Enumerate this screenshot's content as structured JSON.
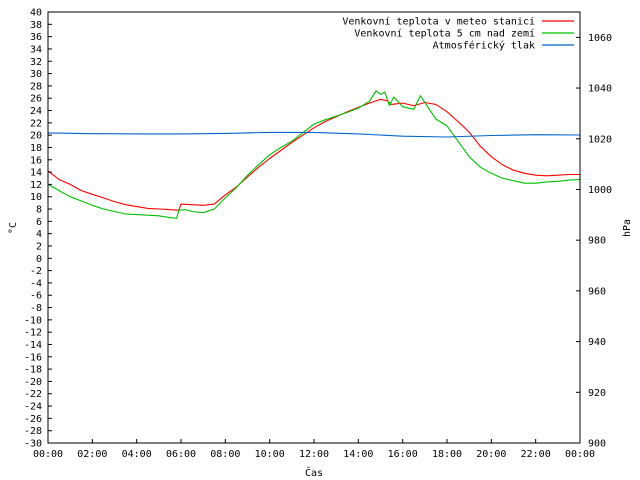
{
  "chart_data": {
    "type": "line",
    "title": "",
    "xlabel": "Čas",
    "ylabel": "°C",
    "y2label": "hPa",
    "x_ticks": [
      "00:00",
      "02:00",
      "04:00",
      "06:00",
      "08:00",
      "10:00",
      "12:00",
      "14:00",
      "16:00",
      "18:00",
      "20:00",
      "22:00",
      "00:00"
    ],
    "xlim": [
      0,
      24
    ],
    "ylim": [
      -30,
      40
    ],
    "y_ticks": [
      -30,
      -28,
      -26,
      -24,
      -22,
      -20,
      -18,
      -16,
      -14,
      -12,
      -10,
      -8,
      -6,
      -4,
      -2,
      0,
      2,
      4,
      6,
      8,
      10,
      12,
      14,
      16,
      18,
      20,
      22,
      24,
      26,
      28,
      30,
      32,
      34,
      36,
      38,
      40
    ],
    "y2lim": [
      900,
      1070
    ],
    "y2_ticks": [
      900,
      920,
      940,
      960,
      980,
      1000,
      1020,
      1040,
      1060
    ],
    "legend_position": "top-right",
    "grid": false,
    "series": [
      {
        "name": "Venkovní teplota v meteo stanici",
        "axis": "left",
        "color": "#ff0000",
        "points": [
          [
            0,
            14.2
          ],
          [
            0.5,
            12.8
          ],
          [
            1,
            12.0
          ],
          [
            1.5,
            11.0
          ],
          [
            2,
            10.4
          ],
          [
            2.5,
            9.8
          ],
          [
            3,
            9.2
          ],
          [
            3.5,
            8.7
          ],
          [
            4,
            8.4
          ],
          [
            4.5,
            8.1
          ],
          [
            5,
            8.0
          ],
          [
            5.5,
            7.9
          ],
          [
            5.9,
            7.8
          ],
          [
            6.0,
            8.8
          ],
          [
            6.5,
            8.7
          ],
          [
            7,
            8.6
          ],
          [
            7.5,
            8.8
          ],
          [
            8,
            10.3
          ],
          [
            8.5,
            11.6
          ],
          [
            9,
            13.2
          ],
          [
            9.5,
            14.8
          ],
          [
            10,
            16.2
          ],
          [
            10.5,
            17.5
          ],
          [
            11,
            18.8
          ],
          [
            11.5,
            20.0
          ],
          [
            12,
            21.2
          ],
          [
            12.5,
            22.2
          ],
          [
            13,
            23.0
          ],
          [
            13.5,
            23.8
          ],
          [
            14,
            24.5
          ],
          [
            14.5,
            25.2
          ],
          [
            15,
            25.8
          ],
          [
            15.3,
            25.6
          ],
          [
            15.5,
            25.0
          ],
          [
            16,
            25.2
          ],
          [
            16.5,
            24.8
          ],
          [
            17,
            25.3
          ],
          [
            17.5,
            25.0
          ],
          [
            18,
            23.8
          ],
          [
            18.5,
            22.2
          ],
          [
            19,
            20.5
          ],
          [
            19.5,
            18.2
          ],
          [
            20,
            16.5
          ],
          [
            20.5,
            15.2
          ],
          [
            21,
            14.3
          ],
          [
            21.5,
            13.8
          ],
          [
            22,
            13.5
          ],
          [
            22.5,
            13.4
          ],
          [
            23,
            13.5
          ],
          [
            23.5,
            13.6
          ],
          [
            24,
            13.6
          ]
        ]
      },
      {
        "name": "Venkovní teplota 5 cm nad zemí",
        "axis": "left",
        "color": "#00c000",
        "points": [
          [
            0,
            12.0
          ],
          [
            0.5,
            11.0
          ],
          [
            1,
            10.0
          ],
          [
            1.5,
            9.3
          ],
          [
            2,
            8.6
          ],
          [
            2.5,
            8.0
          ],
          [
            3,
            7.6
          ],
          [
            3.5,
            7.2
          ],
          [
            4,
            7.1
          ],
          [
            4.5,
            7.0
          ],
          [
            5,
            6.9
          ],
          [
            5.5,
            6.6
          ],
          [
            5.8,
            6.5
          ],
          [
            5.9,
            7.8
          ],
          [
            6.2,
            7.9
          ],
          [
            6.5,
            7.6
          ],
          [
            7,
            7.4
          ],
          [
            7.5,
            8.0
          ],
          [
            8,
            9.8
          ],
          [
            8.5,
            11.5
          ],
          [
            9,
            13.5
          ],
          [
            9.5,
            15.2
          ],
          [
            10,
            16.8
          ],
          [
            10.5,
            18.0
          ],
          [
            11,
            19.0
          ],
          [
            11.5,
            20.4
          ],
          [
            12,
            21.8
          ],
          [
            12.5,
            22.5
          ],
          [
            13,
            23.1
          ],
          [
            13.5,
            23.7
          ],
          [
            14,
            24.4
          ],
          [
            14.5,
            25.5
          ],
          [
            14.8,
            27.2
          ],
          [
            15,
            26.6
          ],
          [
            15.2,
            27.0
          ],
          [
            15.4,
            24.8
          ],
          [
            15.6,
            26.2
          ],
          [
            16,
            24.6
          ],
          [
            16.5,
            24.2
          ],
          [
            16.8,
            26.4
          ],
          [
            17.2,
            24.2
          ],
          [
            17.5,
            22.6
          ],
          [
            18,
            21.5
          ],
          [
            18.5,
            19.0
          ],
          [
            19,
            16.5
          ],
          [
            19.5,
            14.8
          ],
          [
            20,
            13.8
          ],
          [
            20.5,
            13.0
          ],
          [
            21,
            12.6
          ],
          [
            21.5,
            12.2
          ],
          [
            22,
            12.2
          ],
          [
            22.5,
            12.4
          ],
          [
            23,
            12.5
          ],
          [
            23.5,
            12.7
          ],
          [
            24,
            12.8
          ]
        ]
      },
      {
        "name": "Atmosférický tlak",
        "axis": "right",
        "color": "#0066cc",
        "points": [
          [
            0,
            1022.3
          ],
          [
            2,
            1022.0
          ],
          [
            4,
            1021.9
          ],
          [
            6,
            1021.9
          ],
          [
            8,
            1022.1
          ],
          [
            10,
            1022.5
          ],
          [
            12,
            1022.5
          ],
          [
            14,
            1021.9
          ],
          [
            16,
            1021.0
          ],
          [
            18,
            1020.7
          ],
          [
            20,
            1021.3
          ],
          [
            22,
            1021.6
          ],
          [
            24,
            1021.5
          ]
        ]
      }
    ]
  }
}
